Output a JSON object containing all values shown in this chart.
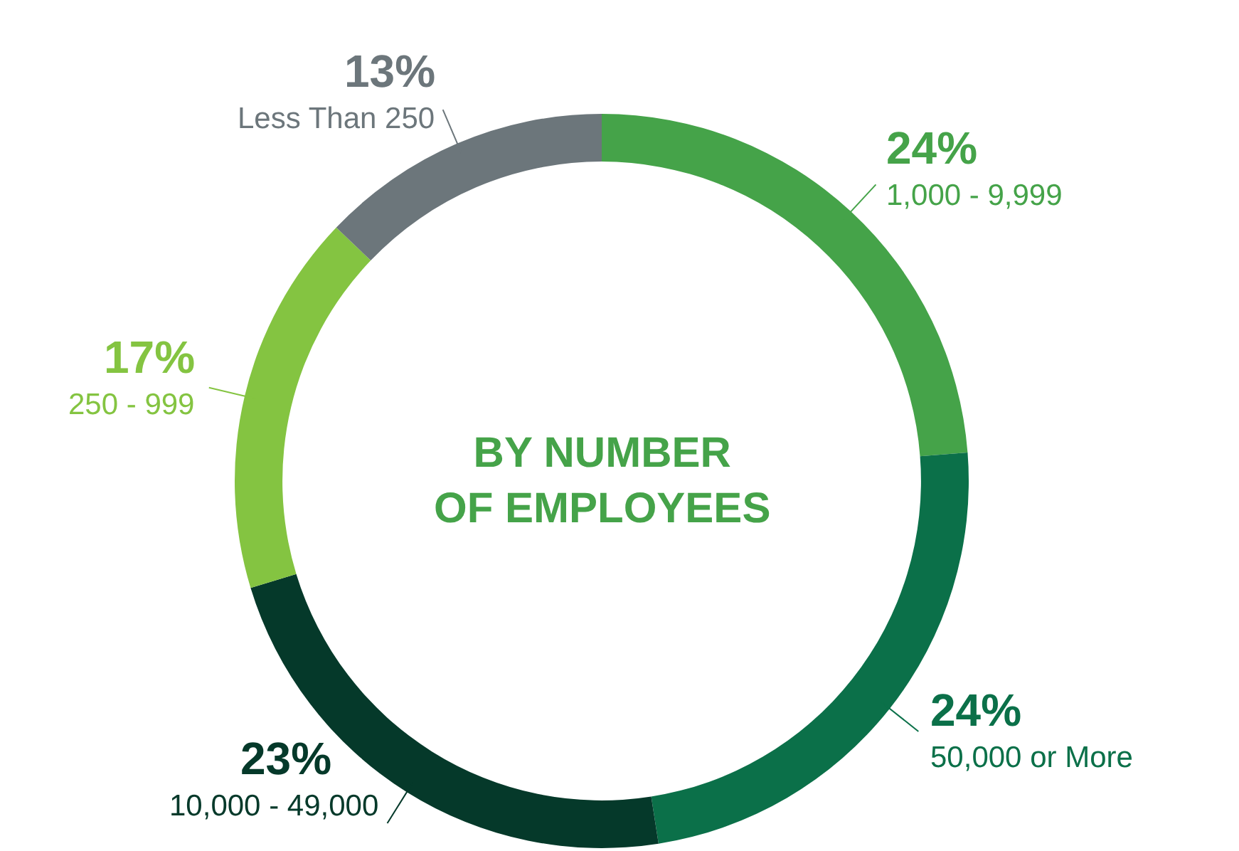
{
  "chart_data": {
    "type": "donut",
    "title": "BY NUMBER\nOF EMPLOYEES",
    "categories": [
      "1,000 - 9,999",
      "50,000 or More",
      "10,000 - 49,000",
      "250 - 999",
      "Less Than 250"
    ],
    "values": [
      24,
      24,
      23,
      17,
      13
    ],
    "value_labels": [
      "24%",
      "24%",
      "23%",
      "17%",
      "13%"
    ],
    "colors": [
      "#45a349",
      "#0b7049",
      "#05392a",
      "#84c441",
      "#6c767b"
    ],
    "legend": false
  }
}
